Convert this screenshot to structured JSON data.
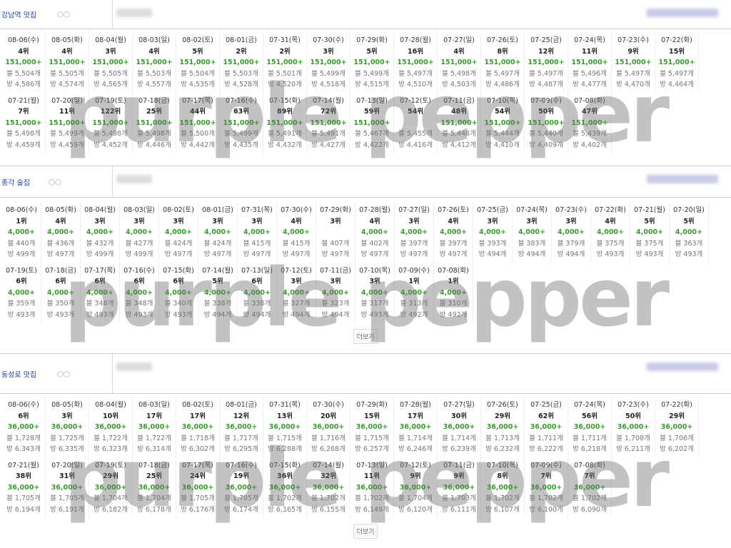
{
  "watermark": "purple pepper",
  "sections": [
    {
      "title": "강남역 맛집",
      "cells": [
        {
          "date": "08-06(수)",
          "rank": "4위",
          "volume": "151,000+",
          "blog": "블 5,504개",
          "cafe": "방 4,586개"
        },
        {
          "date": "08-05(화)",
          "rank": "4위",
          "volume": "151,000+",
          "blog": "블 5,505개",
          "cafe": "방 4,574개"
        },
        {
          "date": "08-04(월)",
          "rank": "3위",
          "volume": "151,000+",
          "blog": "블 5,505개",
          "cafe": "방 4,565개"
        },
        {
          "date": "08-03(일)",
          "rank": "4위",
          "volume": "151,000+",
          "blog": "블 5,503개",
          "cafe": "방 4,557개"
        },
        {
          "date": "08-02(토)",
          "rank": "5위",
          "volume": "151,000+",
          "blog": "블 5,504개",
          "cafe": "방 4,535개"
        },
        {
          "date": "08-01(금)",
          "rank": "2위",
          "volume": "151,000+",
          "blog": "블 5,503개",
          "cafe": "방 4,528개"
        },
        {
          "date": "07-31(목)",
          "rank": "2위",
          "volume": "151,000+",
          "blog": "블 5,501개",
          "cafe": "방 4,520개"
        },
        {
          "date": "07-30(수)",
          "rank": "3위",
          "volume": "151,000+",
          "blog": "블 5,499개",
          "cafe": "방 4,518개"
        },
        {
          "date": "07-29(화)",
          "rank": "5위",
          "volume": "151,000+",
          "blog": "블 5,499개",
          "cafe": "방 4,515개"
        },
        {
          "date": "07-28(월)",
          "rank": "16위",
          "volume": "151,000+",
          "blog": "블 5,497개",
          "cafe": "방 4,510개"
        },
        {
          "date": "07-27(일)",
          "rank": "4위",
          "volume": "151,000+",
          "blog": "블 5,498개",
          "cafe": "방 4,503개"
        },
        {
          "date": "07-26(토)",
          "rank": "8위",
          "volume": "151,000+",
          "blog": "블 5,497개",
          "cafe": "방 4,486개"
        },
        {
          "date": "07-25(금)",
          "rank": "12위",
          "volume": "151,000+",
          "blog": "블 5,497개",
          "cafe": "방 4,487개"
        },
        {
          "date": "07-24(목)",
          "rank": "11위",
          "volume": "151,000+",
          "blog": "블 5,496개",
          "cafe": "방 4,477개"
        },
        {
          "date": "07-23(수)",
          "rank": "9위",
          "volume": "151,000+",
          "blog": "블 5,497개",
          "cafe": "방 4,470개"
        },
        {
          "date": "07-22(화)",
          "rank": "15위",
          "volume": "151,000+",
          "blog": "블 5,497개",
          "cafe": "방 4,464개"
        },
        {
          "date": "07-21(월)",
          "rank": "7위",
          "volume": "151,000+",
          "blog": "블 5,498개",
          "cafe": "방 4,459개"
        },
        {
          "date": "07-20(일)",
          "rank": "11위",
          "volume": "151,000+",
          "blog": "블 5,499개",
          "cafe": "방 4,459개"
        },
        {
          "date": "07-19(토)",
          "rank": "122위",
          "volume": "151,000+",
          "blog": "블 5,498개",
          "cafe": "방 4,452개"
        },
        {
          "date": "07-18(금)",
          "rank": "25위",
          "volume": "151,000+",
          "blog": "블 5,498개",
          "cafe": "방 4,446개"
        },
        {
          "date": "07-17(목)",
          "rank": "44위",
          "volume": "151,000+",
          "blog": "블 5,500개",
          "cafe": "방 4,442개"
        },
        {
          "date": "07-16(수)",
          "rank": "63위",
          "volume": "151,000+",
          "blog": "블 5,499개",
          "cafe": "방 4,435개"
        },
        {
          "date": "07-15(화)",
          "rank": "89위",
          "volume": "151,000+",
          "blog": "블 5,491개",
          "cafe": "방 4,432개"
        },
        {
          "date": "07-14(월)",
          "rank": "72위",
          "volume": "151,000+",
          "blog": "블 5,491개",
          "cafe": "방 4,427개"
        },
        {
          "date": "07-13(일)",
          "rank": "59위",
          "volume": "151,000+",
          "blog": "블 5,467개",
          "cafe": "방 4,422개"
        },
        {
          "date": "07-12(토)",
          "rank": "54위",
          "blog": "블 5,455개",
          "cafe": "방 4,416개"
        },
        {
          "date": "07-11(금)",
          "rank": "48위",
          "volume": "151,000+",
          "blog": "블 5,448개",
          "cafe": "방 4,412개"
        },
        {
          "date": "07-10(목)",
          "rank": "54위",
          "volume": "151,000+",
          "blog": "블 5,444개",
          "cafe": "방 4,410개"
        },
        {
          "date": "07-09(수)",
          "rank": "50위",
          "volume": "151,000+",
          "blog": "블 5,440개",
          "cafe": "방 4,409개"
        },
        {
          "date": "07-08(화)",
          "rank": "47위",
          "volume": "151,000+",
          "blog": "블 5,439개",
          "cafe": "방 4,402개"
        }
      ]
    },
    {
      "title": "종각 술집",
      "more": "더보기",
      "cells": [
        {
          "date": "08-06(수)",
          "rank": "1위",
          "volume": "4,000+",
          "blog": "블 440개",
          "cafe": "방 499개"
        },
        {
          "date": "08-05(화)",
          "rank": "4위",
          "volume": "4,000+",
          "blog": "블 436개",
          "cafe": "방 497개"
        },
        {
          "date": "08-04(월)",
          "rank": "3위",
          "volume": "4,000+",
          "blog": "블 432개",
          "cafe": "방 499개"
        },
        {
          "date": "08-03(일)",
          "rank": "3위",
          "volume": "4,000+",
          "blog": "블 427개",
          "cafe": "방 499개"
        },
        {
          "date": "08-02(토)",
          "rank": "3위",
          "volume": "4,000+",
          "blog": "블 424개",
          "cafe": "방 497개"
        },
        {
          "date": "08-01(금)",
          "rank": "3위",
          "volume": "4,000+",
          "blog": "블 424개",
          "cafe": "방 497개"
        },
        {
          "date": "07-31(목)",
          "rank": "3위",
          "volume": "4,000+",
          "blog": "블 415개",
          "cafe": "방 497개"
        },
        {
          "date": "07-30(수)",
          "rank": "4위",
          "volume": "4,000+",
          "blog": "블 415개",
          "cafe": "방 497개"
        },
        {
          "date": "07-29(화)",
          "rank": "3위",
          "blog": "블 407개",
          "cafe": "방 497개"
        },
        {
          "date": "07-28(월)",
          "rank": "4위",
          "volume": "4,000+",
          "blog": "블 402개",
          "cafe": "방 497개"
        },
        {
          "date": "07-27(일)",
          "rank": "3위",
          "volume": "4,000+",
          "blog": "블 397개",
          "cafe": "방 497개"
        },
        {
          "date": "07-26(토)",
          "rank": "4위",
          "volume": "4,000+",
          "blog": "블 397개",
          "cafe": "방 497개"
        },
        {
          "date": "07-25(금)",
          "rank": "3위",
          "volume": "4,000+",
          "blog": "블 393개",
          "cafe": "방 494개"
        },
        {
          "date": "07-24(목)",
          "rank": "3위",
          "volume": "4,000+",
          "blog": "블 383개",
          "cafe": "방 494개"
        },
        {
          "date": "07-23(수)",
          "rank": "3위",
          "volume": "4,000+",
          "blog": "블 379개",
          "cafe": "방 494개"
        },
        {
          "date": "07-22(화)",
          "rank": "4위",
          "volume": "4,000+",
          "blog": "블 375개",
          "cafe": "방 493개"
        },
        {
          "date": "07-21(월)",
          "rank": "5위",
          "volume": "4,000+",
          "blog": "블 375개",
          "cafe": "방 493개"
        },
        {
          "date": "07-20(일)",
          "rank": "5위",
          "volume": "4,000+",
          "blog": "블 363개",
          "cafe": "방 493개"
        },
        {
          "date": "07-19(토)",
          "rank": "6위",
          "volume": "4,000+",
          "blog": "블 359개",
          "cafe": "방 493개"
        },
        {
          "date": "07-18(금)",
          "rank": "6위",
          "volume": "4,000+",
          "blog": "블 350개",
          "cafe": "방 493개"
        },
        {
          "date": "07-17(목)",
          "rank": "6위",
          "volume": "4,000+",
          "blog": "블 348개",
          "cafe": "방 493개"
        },
        {
          "date": "07-16(수)",
          "rank": "6위",
          "volume": "4,000+",
          "blog": "블 348개",
          "cafe": "방 493개"
        },
        {
          "date": "07-15(화)",
          "rank": "6위",
          "volume": "4,000+",
          "blog": "블 340개",
          "cafe": "방 493개"
        },
        {
          "date": "07-14(월)",
          "rank": "5위",
          "volume": "4,000+",
          "blog": "블 338개",
          "cafe": "방 494개"
        },
        {
          "date": "07-13(일)",
          "rank": "6위",
          "volume": "4,000+",
          "blog": "블 338개",
          "cafe": "방 494개"
        },
        {
          "date": "07-12(토)",
          "rank": "3위",
          "volume": "4,000+",
          "blog": "블 327개",
          "cafe": "방 494개"
        },
        {
          "date": "07-11(금)",
          "rank": "3위",
          "volume": "4,000+",
          "blog": "블 323개",
          "cafe": "방 494개"
        },
        {
          "date": "07-10(목)",
          "rank": "3위",
          "volume": "4,000+",
          "blog": "블 317개",
          "cafe": "방 493개"
        },
        {
          "date": "07-09(수)",
          "rank": "1위",
          "volume": "4,000+",
          "blog": "블 313개",
          "cafe": "방 492개"
        },
        {
          "date": "07-08(화)",
          "rank": "1위",
          "volume": "4,000+",
          "blog": "블 310개",
          "cafe": "방 492개"
        }
      ]
    },
    {
      "title": "동성로 맛집",
      "more": "더보기",
      "cells": [
        {
          "date": "08-06(수)",
          "rank": "6위",
          "volume": "36,000+",
          "blog": "블 1,728개",
          "cafe": "방 6,343개"
        },
        {
          "date": "08-05(화)",
          "rank": "3위",
          "volume": "36,000+",
          "blog": "블 1,725개",
          "cafe": "방 6,335개"
        },
        {
          "date": "08-04(월)",
          "rank": "10위",
          "volume": "36,000+",
          "blog": "블 1,722개",
          "cafe": "방 6,323개"
        },
        {
          "date": "08-03(일)",
          "rank": "17위",
          "volume": "36,000+",
          "blog": "블 1,722개",
          "cafe": "방 6,314개"
        },
        {
          "date": "08-02(토)",
          "rank": "17위",
          "volume": "36,000+",
          "blog": "블 1,718개",
          "cafe": "방 6,302개"
        },
        {
          "date": "08-01(금)",
          "rank": "12위",
          "volume": "36,000+",
          "blog": "블 1,717개",
          "cafe": "방 6,295개"
        },
        {
          "date": "07-31(목)",
          "rank": "13위",
          "volume": "36,000+",
          "blog": "블 1,715개",
          "cafe": "방 6,288개"
        },
        {
          "date": "07-30(수)",
          "rank": "20위",
          "volume": "36,000+",
          "blog": "블 1,716개",
          "cafe": "방 6,268개"
        },
        {
          "date": "07-29(화)",
          "rank": "15위",
          "volume": "36,000+",
          "blog": "블 1,715개",
          "cafe": "방 6,257개"
        },
        {
          "date": "07-28(월)",
          "rank": "17위",
          "volume": "36,000+",
          "blog": "블 1,714개",
          "cafe": "방 6,246개"
        },
        {
          "date": "07-27(일)",
          "rank": "30위",
          "volume": "36,000+",
          "blog": "블 1,714개",
          "cafe": "방 6,239개"
        },
        {
          "date": "07-26(토)",
          "rank": "29위",
          "volume": "36,000+",
          "blog": "블 1,713개",
          "cafe": "방 6,232개"
        },
        {
          "date": "07-25(금)",
          "rank": "62위",
          "volume": "36,000+",
          "blog": "블 1,711개",
          "cafe": "방 6,222개"
        },
        {
          "date": "07-24(목)",
          "rank": "56위",
          "volume": "36,000+",
          "blog": "블 1,711개",
          "cafe": "방 6,218개"
        },
        {
          "date": "07-23(수)",
          "rank": "50위",
          "volume": "36,000+",
          "blog": "블 1,708개",
          "cafe": "방 6,211개"
        },
        {
          "date": "07-22(화)",
          "rank": "29위",
          "volume": "36,000+",
          "blog": "블 1,706개",
          "cafe": "방 6,202개"
        },
        {
          "date": "07-21(월)",
          "rank": "38위",
          "volume": "36,000+",
          "blog": "블 1,705개",
          "cafe": "방 6,194개"
        },
        {
          "date": "07-20(일)",
          "rank": "31위",
          "volume": "36,000+",
          "blog": "블 1,705개",
          "cafe": "방 6,191개"
        },
        {
          "date": "07-19(토)",
          "rank": "29위",
          "volume": "36,000+",
          "blog": "블 1,704개",
          "cafe": "방 6,182개"
        },
        {
          "date": "07-18(금)",
          "rank": "25위",
          "volume": "36,000+",
          "blog": "블 1,704개",
          "cafe": "방 6,178개"
        },
        {
          "date": "07-17(목)",
          "rank": "24위",
          "volume": "36,000+",
          "blog": "블 1,705개",
          "cafe": "방 6,176개"
        },
        {
          "date": "07-16(수)",
          "rank": "19위",
          "volume": "36,000+",
          "blog": "블 1,705개",
          "cafe": "방 6,174개"
        },
        {
          "date": "07-15(화)",
          "rank": "36위",
          "volume": "36,000+",
          "blog": "블 1,702개",
          "cafe": "방 6,165개"
        },
        {
          "date": "07-14(월)",
          "rank": "32위",
          "volume": "36,000+",
          "blog": "블 1,702개",
          "cafe": "방 6,155개"
        },
        {
          "date": "07-13(일)",
          "rank": "11위",
          "volume": "36,000+",
          "blog": "블 1,702개",
          "cafe": "방 6,149개"
        },
        {
          "date": "07-12(토)",
          "rank": "9위",
          "volume": "36,000+",
          "blog": "블 1,704개",
          "cafe": "방 6,120개"
        },
        {
          "date": "07-11(금)",
          "rank": "9위",
          "volume": "36,000+",
          "blog": "블 1,703개",
          "cafe": "방 6,111개"
        },
        {
          "date": "07-10(목)",
          "rank": "8위",
          "volume": "36,000+",
          "blog": "블 1,702개",
          "cafe": "방 6,107개"
        },
        {
          "date": "07-09(수)",
          "rank": "7위",
          "volume": "36,000+",
          "blog": "블 1,702개",
          "cafe": "방 6,100개"
        },
        {
          "date": "07-08(화)",
          "rank": "7위",
          "volume": "36,000+",
          "blog": "블 1,702개",
          "cafe": "방 6,090개"
        }
      ]
    }
  ]
}
